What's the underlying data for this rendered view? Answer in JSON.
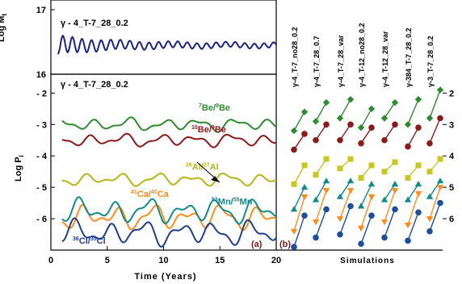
{
  "chart_data": [
    {
      "type": "line",
      "panel": "top",
      "label": "γ - 4_T-7_28_0.2",
      "ylabel": "Log M",
      "ylabel_sub": "t",
      "x": "Time (Years)",
      "xlim": [
        0,
        20
      ],
      "ylim": [
        16,
        17
      ],
      "yticks": [
        "17",
        "16"
      ],
      "series": [
        {
          "color": "#1a237e",
          "approx_mean": 16.45,
          "note": "damped oscillation, amplitude decreasing from ~0.12 to ~0.04"
        }
      ]
    },
    {
      "type": "line",
      "panel": "a",
      "panel_tag": "(a)",
      "label": "γ - 4_T-7_28_0.2",
      "ylabel": "Log P",
      "ylabel_sub": "i",
      "xlabel": "Time (Years)",
      "xlim": [
        0,
        20
      ],
      "ylim": [
        -7,
        -1.4
      ],
      "xticks": [
        "0",
        "5",
        "10",
        "15",
        "20"
      ],
      "yticks": [
        "- 2",
        "- 3",
        "- 4",
        "- 5",
        "- 6"
      ],
      "series": [
        {
          "name_sup1": "7",
          "name_a": "Be/",
          "name_sup2": "9",
          "name_b": "Be",
          "color": "#2e8b2e",
          "level": -3.0
        },
        {
          "name_sup1": "10",
          "name_a": "Be/",
          "name_sup2": "9",
          "name_b": "Be",
          "color": "#8b1a1a",
          "level": -3.5
        },
        {
          "name_sup1": "26",
          "name_a": "Al/",
          "name_sup2": "27",
          "name_b": "Al",
          "color": "#b5b516",
          "level": -4.75
        },
        {
          "name_sup1": "41",
          "name_a": "Ca/",
          "name_sup2": "40",
          "name_b": "Ca",
          "color": "#ff8c1a",
          "level": -5.95
        },
        {
          "name_sup1": "53",
          "name_a": "Mn/",
          "name_sup2": "55",
          "name_b": "Mn",
          "color": "#138a8a",
          "level": -5.75
        },
        {
          "name_sup1": "36",
          "name_a": "Cl/",
          "name_sup2": "35",
          "name_b": "Cl",
          "color": "#1f3f8a",
          "level": -6.45
        }
      ]
    },
    {
      "type": "scatter",
      "panel": "b",
      "panel_tag": "(b)",
      "xlabel": "Simulations",
      "ylim": [
        -7,
        -1.4
      ],
      "yticks_right": [
        "2",
        "3",
        "4",
        "5",
        "6"
      ],
      "categories": [
        "γ-4_T-7_no28_0.2",
        "γ-4_T-7_28_0.7",
        "γ-4_T-7_28_var",
        "γ-4_T-12_no28_0.2",
        "γ-4_T-12_28_var",
        "γ-384_T-7_28_0.2",
        "γ-3_T-7_28_0.2"
      ],
      "series": [
        {
          "marker": "diamond",
          "color": "#2e8b2e",
          "min": [
            -3.2,
            -2.9,
            -2.8,
            -3.1,
            -2.8,
            -3.0,
            -2.8
          ],
          "max": [
            -2.6,
            -2.3,
            -2.2,
            -2.5,
            -2.3,
            -2.2,
            -1.9
          ]
        },
        {
          "marker": "circle",
          "color": "#8b1a1a",
          "min": [
            -3.8,
            -3.5,
            -3.5,
            -3.6,
            -3.5,
            -3.7,
            -3.6
          ],
          "max": [
            -3.3,
            -3.0,
            -3.0,
            -3.1,
            -3.0,
            -3.1,
            -2.8
          ]
        },
        {
          "marker": "square",
          "color": "#c8c820",
          "min": [
            -4.9,
            -4.6,
            -4.4,
            -4.7,
            -4.5,
            -4.7,
            -4.5
          ],
          "max": [
            -4.3,
            -4.1,
            -4.1,
            -4.3,
            -4.2,
            -4.3,
            -4.1
          ]
        },
        {
          "marker": "triangle-up",
          "color": "#138a8a",
          "min": [
            -5.7,
            -5.4,
            -5.3,
            -5.6,
            -5.4,
            -5.4,
            -5.3
          ],
          "max": [
            -5.0,
            -4.8,
            -4.8,
            -4.9,
            -4.9,
            -4.9,
            -4.8
          ]
        },
        {
          "marker": "triangle-down",
          "color": "#ff8c1a",
          "min": [
            -6.4,
            -6.1,
            -6.0,
            -6.3,
            -6.1,
            -6.2,
            -6.0
          ],
          "max": [
            -5.3,
            -5.1,
            -5.1,
            -5.3,
            -5.1,
            -5.2,
            -5.0
          ]
        },
        {
          "marker": "circle",
          "color": "#1f4f9a",
          "min": [
            -6.9,
            -6.6,
            -6.5,
            -6.8,
            -6.6,
            -6.7,
            -6.4
          ],
          "max": [
            -5.9,
            -5.7,
            -5.6,
            -5.9,
            -5.7,
            -5.8,
            -5.5
          ]
        }
      ]
    }
  ]
}
